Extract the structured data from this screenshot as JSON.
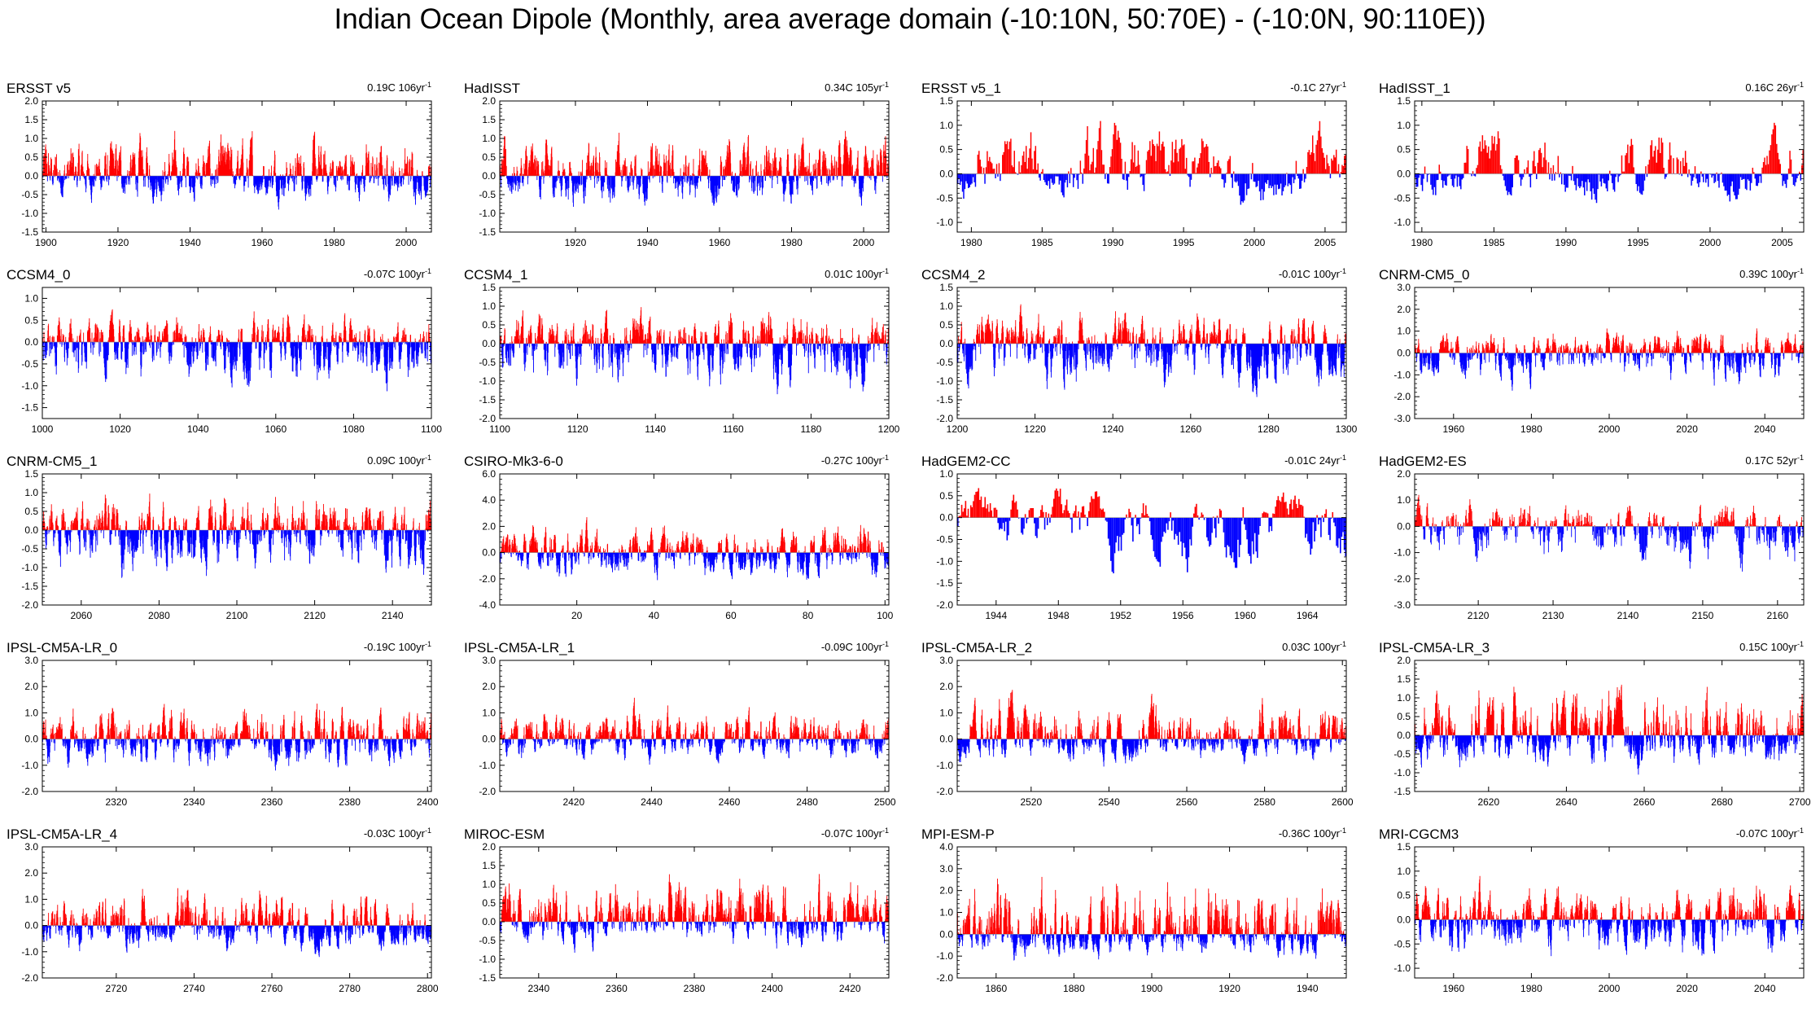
{
  "title": "Indian Ocean Dipole (Monthly, area average domain (-10:10N, 50:70E) - (-10:0N, 90:110E))",
  "colors": {
    "positive": "#ff0000",
    "negative": "#0000ff",
    "axis": "#000000",
    "background": "#ffffff"
  },
  "chart_data": [
    {
      "type": "bar",
      "title": "ERSST v5",
      "trend": "0.19C 106yr",
      "trend_exp": "-1",
      "xlim": [
        1899,
        2007
      ],
      "xticks": [
        1900,
        1920,
        1940,
        1960,
        1980,
        2000
      ],
      "ylim": [
        -1.5,
        2.0
      ],
      "yticks": [
        "2.0",
        "1.5",
        "1.0",
        "0.5",
        "0.0",
        "-0.5",
        "-1.0",
        "-1.5"
      ],
      "positive_color": "#ff0000",
      "negative_color": "#0000ff",
      "series_max": 1.6,
      "series_min": -1.2
    },
    {
      "type": "bar",
      "title": "HadISST",
      "trend": "0.34C 105yr",
      "trend_exp": "-1",
      "xlim": [
        1899,
        2007
      ],
      "xticks": [
        1920,
        1940,
        1960,
        1980,
        2000
      ],
      "ylim": [
        -1.5,
        2.0
      ],
      "yticks": [
        "2.0",
        "1.5",
        "1.0",
        "0.5",
        "0.0",
        "-0.5",
        "-1.0",
        "-1.5"
      ],
      "positive_color": "#ff0000",
      "negative_color": "#0000ff",
      "series_max": 1.6,
      "series_min": -1.1
    },
    {
      "type": "bar",
      "title": "ERSST v5_1",
      "trend": "-0.1C 27yr",
      "trend_exp": "-1",
      "xlim": [
        1979,
        2006.5
      ],
      "xticks": [
        1980,
        1985,
        1990,
        1995,
        2000,
        2005
      ],
      "ylim": [
        -1.2,
        1.5
      ],
      "yticks": [
        "1.5",
        "1.0",
        "0.5",
        "0.0",
        "-0.5",
        "-1.0"
      ],
      "positive_color": "#ff0000",
      "negative_color": "#0000ff",
      "series_max": 1.45,
      "series_min": -0.85
    },
    {
      "type": "bar",
      "title": "HadISST_1",
      "trend": "0.16C 26yr",
      "trend_exp": "-1",
      "xlim": [
        1979.5,
        2006.5
      ],
      "xticks": [
        1980,
        1985,
        1990,
        1995,
        2000,
        2005
      ],
      "ylim": [
        -1.2,
        1.5
      ],
      "yticks": [
        "1.5",
        "1.0",
        "0.5",
        "0.0",
        "-0.5",
        "-1.0"
      ],
      "positive_color": "#ff0000",
      "negative_color": "#0000ff",
      "series_max": 1.4,
      "series_min": -0.8
    },
    {
      "type": "bar",
      "title": "CCSM4_0",
      "trend": "-0.07C 100yr",
      "trend_exp": "-1",
      "xlim": [
        1000,
        1100
      ],
      "xticks": [
        1000,
        1020,
        1040,
        1060,
        1080,
        1100
      ],
      "ylim": [
        -1.75,
        1.25
      ],
      "yticks": [
        "1.0",
        "0.5",
        "0.0",
        "-0.5",
        "-1.0",
        "-1.5"
      ],
      "positive_color": "#ff0000",
      "negative_color": "#0000ff",
      "series_max": 1.0,
      "series_min": -1.5
    },
    {
      "type": "bar",
      "title": "CCSM4_1",
      "trend": "0.01C 100yr",
      "trend_exp": "-1",
      "xlim": [
        1100,
        1200
      ],
      "xticks": [
        1100,
        1120,
        1140,
        1160,
        1180,
        1200
      ],
      "ylim": [
        -2.0,
        1.5
      ],
      "yticks": [
        "1.5",
        "1.0",
        "0.5",
        "0.0",
        "-0.5",
        "-1.0",
        "-1.5",
        "-2.0"
      ],
      "positive_color": "#ff0000",
      "negative_color": "#0000ff",
      "series_max": 1.3,
      "series_min": -1.8
    },
    {
      "type": "bar",
      "title": "CCSM4_2",
      "trend": "-0.01C 100yr",
      "trend_exp": "-1",
      "xlim": [
        1200,
        1300
      ],
      "xticks": [
        1200,
        1220,
        1240,
        1260,
        1280,
        1300
      ],
      "ylim": [
        -2.0,
        1.5
      ],
      "yticks": [
        "1.5",
        "1.0",
        "0.5",
        "0.0",
        "-0.5",
        "-1.0",
        "-1.5",
        "-2.0"
      ],
      "positive_color": "#ff0000",
      "negative_color": "#0000ff",
      "series_max": 1.4,
      "series_min": -1.9
    },
    {
      "type": "bar",
      "title": "CNRM-CM5_0",
      "trend": "0.39C 100yr",
      "trend_exp": "-1",
      "xlim": [
        1950,
        2050
      ],
      "xticks": [
        1960,
        1980,
        2000,
        2020,
        2040
      ],
      "ylim": [
        -3.0,
        3.0
      ],
      "yticks": [
        "3.0",
        "2.0",
        "1.0",
        "0.0",
        "-1.0",
        "-2.0",
        "-3.0"
      ],
      "positive_color": "#ff0000",
      "negative_color": "#0000ff",
      "series_max": 1.5,
      "series_min": -2.3
    },
    {
      "type": "bar",
      "title": "CNRM-CM5_1",
      "trend": "0.09C 100yr",
      "trend_exp": "-1",
      "xlim": [
        2050,
        2150
      ],
      "xticks": [
        2060,
        2080,
        2100,
        2120,
        2140
      ],
      "ylim": [
        -2.0,
        1.5
      ],
      "yticks": [
        "1.5",
        "1.0",
        "0.5",
        "0.0",
        "-0.5",
        "-1.0",
        "-1.5",
        "-2.0"
      ],
      "positive_color": "#ff0000",
      "negative_color": "#0000ff",
      "series_max": 1.3,
      "series_min": -1.7
    },
    {
      "type": "bar",
      "title": "CSIRO-Mk3-6-0",
      "trend": "-0.27C 100yr",
      "trend_exp": "-1",
      "xlim": [
        0,
        101
      ],
      "xticks": [
        20,
        40,
        60,
        80,
        100
      ],
      "ylim": [
        -4.0,
        6.0
      ],
      "yticks": [
        "6.0",
        "4.0",
        "2.0",
        "0.0",
        "-2.0",
        "-4.0"
      ],
      "positive_color": "#ff0000",
      "negative_color": "#0000ff",
      "series_max": 3.6,
      "series_min": -2.8
    },
    {
      "type": "bar",
      "title": "HadGEM2-CC",
      "trend": "-0.01C 24yr",
      "trend_exp": "-1",
      "xlim": [
        1941.5,
        1966.5
      ],
      "xticks": [
        1944,
        1948,
        1952,
        1956,
        1960,
        1964
      ],
      "ylim": [
        -2.0,
        1.0
      ],
      "yticks": [
        "1.0",
        "0.5",
        "0.0",
        "-0.5",
        "-1.0",
        "-1.5",
        "-2.0"
      ],
      "positive_color": "#ff0000",
      "negative_color": "#0000ff",
      "series_max": 0.9,
      "series_min": -1.7
    },
    {
      "type": "bar",
      "title": "HadGEM2-ES",
      "trend": "0.17C 52yr",
      "trend_exp": "-1",
      "xlim": [
        2111.5,
        2163.5
      ],
      "xticks": [
        2120,
        2130,
        2140,
        2150,
        2160
      ],
      "ylim": [
        -3.0,
        2.0
      ],
      "yticks": [
        "2.0",
        "1.0",
        "0.0",
        "-1.0",
        "-2.0",
        "-3.0"
      ],
      "positive_color": "#ff0000",
      "negative_color": "#0000ff",
      "series_max": 1.6,
      "series_min": -2.3
    },
    {
      "type": "bar",
      "title": "IPSL-CM5A-LR_0",
      "trend": "-0.19C 100yr",
      "trend_exp": "-1",
      "xlim": [
        2301,
        2401
      ],
      "xticks": [
        2320,
        2340,
        2360,
        2380,
        2400
      ],
      "ylim": [
        -2.0,
        3.0
      ],
      "yticks": [
        "3.0",
        "2.0",
        "1.0",
        "0.0",
        "-1.0",
        "-2.0"
      ],
      "positive_color": "#ff0000",
      "negative_color": "#0000ff",
      "series_max": 1.8,
      "series_min": -1.6
    },
    {
      "type": "bar",
      "title": "IPSL-CM5A-LR_1",
      "trend": "-0.09C 100yr",
      "trend_exp": "-1",
      "xlim": [
        2401,
        2501
      ],
      "xticks": [
        2420,
        2440,
        2460,
        2480,
        2500
      ],
      "ylim": [
        -2.0,
        3.0
      ],
      "yticks": [
        "3.0",
        "2.0",
        "1.0",
        "0.0",
        "-1.0",
        "-2.0"
      ],
      "positive_color": "#ff0000",
      "negative_color": "#0000ff",
      "series_max": 2.1,
      "series_min": -1.3
    },
    {
      "type": "bar",
      "title": "IPSL-CM5A-LR_2",
      "trend": "0.03C 100yr",
      "trend_exp": "-1",
      "xlim": [
        2501,
        2601
      ],
      "xticks": [
        2520,
        2540,
        2560,
        2580,
        2600
      ],
      "ylim": [
        -2.0,
        3.0
      ],
      "yticks": [
        "3.0",
        "2.0",
        "1.0",
        "0.0",
        "-1.0",
        "-2.0"
      ],
      "positive_color": "#ff0000",
      "negative_color": "#0000ff",
      "series_max": 2.5,
      "series_min": -1.4
    },
    {
      "type": "bar",
      "title": "IPSL-CM5A-LR_3",
      "trend": "0.15C 100yr",
      "trend_exp": "-1",
      "xlim": [
        2601,
        2701
      ],
      "xticks": [
        2620,
        2640,
        2660,
        2680,
        2700
      ],
      "ylim": [
        -1.5,
        2.0
      ],
      "yticks": [
        "2.0",
        "1.5",
        "1.0",
        "0.5",
        "0.0",
        "-0.5",
        "-1.0",
        "-1.5"
      ],
      "positive_color": "#ff0000",
      "negative_color": "#0000ff",
      "series_max": 1.8,
      "series_min": -1.4
    },
    {
      "type": "bar",
      "title": "IPSL-CM5A-LR_4",
      "trend": "-0.03C 100yr",
      "trend_exp": "-1",
      "xlim": [
        2701,
        2801
      ],
      "xticks": [
        2720,
        2740,
        2760,
        2780,
        2800
      ],
      "ylim": [
        -2.0,
        3.0
      ],
      "yticks": [
        "3.0",
        "2.0",
        "1.0",
        "0.0",
        "-1.0",
        "-2.0"
      ],
      "positive_color": "#ff0000",
      "negative_color": "#0000ff",
      "series_max": 1.9,
      "series_min": -1.6
    },
    {
      "type": "bar",
      "title": "MIROC-ESM",
      "trend": "-0.07C 100yr",
      "trend_exp": "-1",
      "xlim": [
        2330,
        2430
      ],
      "xticks": [
        2340,
        2360,
        2380,
        2400,
        2420
      ],
      "ylim": [
        -1.5,
        2.0
      ],
      "yticks": [
        "2.0",
        "1.5",
        "1.0",
        "0.5",
        "0.0",
        "-0.5",
        "-1.0",
        "-1.5"
      ],
      "positive_color": "#ff0000",
      "negative_color": "#0000ff",
      "series_max": 1.7,
      "series_min": -1.1
    },
    {
      "type": "bar",
      "title": "MPI-ESM-P",
      "trend": "-0.36C 100yr",
      "trend_exp": "-1",
      "xlim": [
        1850,
        1950
      ],
      "xticks": [
        1860,
        1880,
        1900,
        1920,
        1940
      ],
      "ylim": [
        -2.0,
        4.0
      ],
      "yticks": [
        "4.0",
        "3.0",
        "2.0",
        "1.0",
        "0.0",
        "-1.0",
        "-2.0"
      ],
      "positive_color": "#ff0000",
      "negative_color": "#0000ff",
      "series_max": 3.5,
      "series_min": -1.6
    },
    {
      "type": "bar",
      "title": "MRI-CGCM3",
      "trend": "-0.07C 100yr",
      "trend_exp": "-1",
      "xlim": [
        1950,
        2050
      ],
      "xticks": [
        1960,
        1980,
        2000,
        2020,
        2040
      ],
      "ylim": [
        -1.2,
        1.5
      ],
      "yticks": [
        "1.5",
        "1.0",
        "0.5",
        "0.0",
        "-0.5",
        "-1.0"
      ],
      "positive_color": "#ff0000",
      "negative_color": "#0000ff",
      "series_max": 1.2,
      "series_min": -1.0
    }
  ]
}
